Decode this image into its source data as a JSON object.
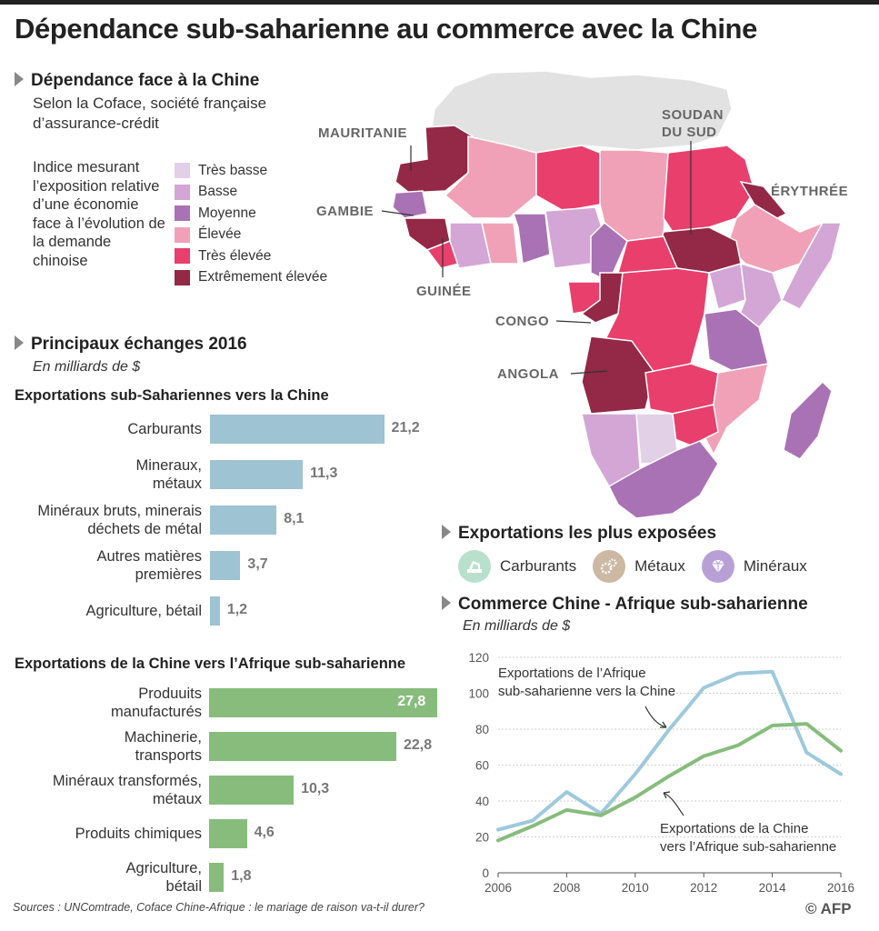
{
  "header": {
    "title": "Dépendance sub-saharienne au commerce avec la Chine"
  },
  "dependence": {
    "heading": "Dépendance face à la Chine",
    "subtitle": "Selon la Coface, société française d’assurance-crédit",
    "index_description": "Indice mesurant l’exposition relative d’une économie face à l’évolution de la demande chinoise",
    "legend": [
      {
        "label": "Très basse",
        "color": "#e2d0e6"
      },
      {
        "label": "Basse",
        "color": "#d3a6d5"
      },
      {
        "label": "Moyenne",
        "color": "#a972b4"
      },
      {
        "label": "Élevée",
        "color": "#f1a1b7"
      },
      {
        "label": "Très élevée",
        "color": "#e83f6c"
      },
      {
        "label": "Extrêmement élevée",
        "color": "#932847"
      }
    ]
  },
  "map": {
    "labels": {
      "mauritanie": "MAURITANIE",
      "soudan_line1": "SOUDAN",
      "soudan_line2": "DU SUD",
      "erythree": "ÉRYTHRÉE",
      "gambie": "GAMBIE",
      "guinee": "GUINÉE",
      "congo": "CONGO",
      "angola": "ANGOLA"
    }
  },
  "trade": {
    "heading": "Principaux échanges 2016",
    "unit": "En milliards de $"
  },
  "exposed": {
    "heading": "Exportations les plus exposées",
    "items": [
      {
        "label": "Carburants",
        "icon": "oil-pump-icon",
        "color": "#b9e0cc"
      },
      {
        "label": "Métaux",
        "icon": "gears-icon",
        "color": "#cdb8a4"
      },
      {
        "label": "Minéraux",
        "icon": "diamond-icon",
        "color": "#b8a0d6"
      }
    ]
  },
  "line_chart_text": {
    "heading": "Commerce Chine  - Afrique sub-saharienne",
    "unit": "En milliards de $",
    "annotation_blue": [
      "Exportations  de l’Afrique",
      "sub-saharienne vers la Chine"
    ],
    "annotation_green": [
      "Exportations de la Chine",
      "vers l’Afrique sub-saharienne"
    ]
  },
  "footer": {
    "source": "Sources : UNComtrade, Coface Chine-Afrique : le mariage de raison va-t-il durer?",
    "credit": "© AFP"
  },
  "chart_data": [
    {
      "type": "bar",
      "title": "Exportations sub-Sahariennes vers la Chine",
      "color": "#9ec3d3",
      "categories": [
        "Carburants",
        "Mineraux,\nmétaux",
        "Minéraux bruts, minerais\ndéchets de métal",
        "Autres matières\npremières",
        "Agriculture, bétail"
      ],
      "values": [
        21.2,
        11.3,
        8.1,
        3.7,
        1.2
      ],
      "value_labels": [
        "21,2",
        "11,3",
        "8,1",
        "3,7",
        "1,2"
      ]
    },
    {
      "type": "bar",
      "title": "Exportations de la Chine vers l’Afrique sub-saharienne",
      "color": "#87bc7d",
      "categories": [
        "Produuits\nmanufacturés",
        "Machinerie,\ntransports",
        "Minéraux transformés,\nmétaux",
        "Produits chimiques",
        "Agriculture,\nbétail"
      ],
      "values": [
        27.8,
        22.8,
        10.3,
        4.6,
        1.8
      ],
      "value_labels": [
        "27,8",
        "22,8",
        "10,3",
        "4,6",
        "1,8"
      ]
    },
    {
      "type": "line",
      "title": "Commerce Chine  - Afrique sub-saharienne",
      "x": [
        2006,
        2007,
        2008,
        2009,
        2010,
        2011,
        2012,
        2013,
        2014,
        2015,
        2016
      ],
      "x_ticks": [
        2006,
        2008,
        2010,
        2012,
        2014,
        2016
      ],
      "y_ticks": [
        0,
        20,
        40,
        60,
        80,
        100,
        120
      ],
      "ylim": [
        0,
        120
      ],
      "xlim": [
        2006,
        2016
      ],
      "grid": true,
      "series": [
        {
          "name": "Exportations  de l’Afrique sub-saharienne vers la Chine",
          "color": "#9ec9dc",
          "values": [
            24,
            29,
            45,
            33,
            55,
            80,
            103,
            111,
            112,
            67,
            55
          ]
        },
        {
          "name": "Exportations de la Chine vers l’Afrique sub-saharienne",
          "color": "#87bc7d",
          "values": [
            18,
            26,
            35,
            32,
            42,
            54,
            65,
            71,
            82,
            83,
            68
          ]
        }
      ]
    }
  ]
}
